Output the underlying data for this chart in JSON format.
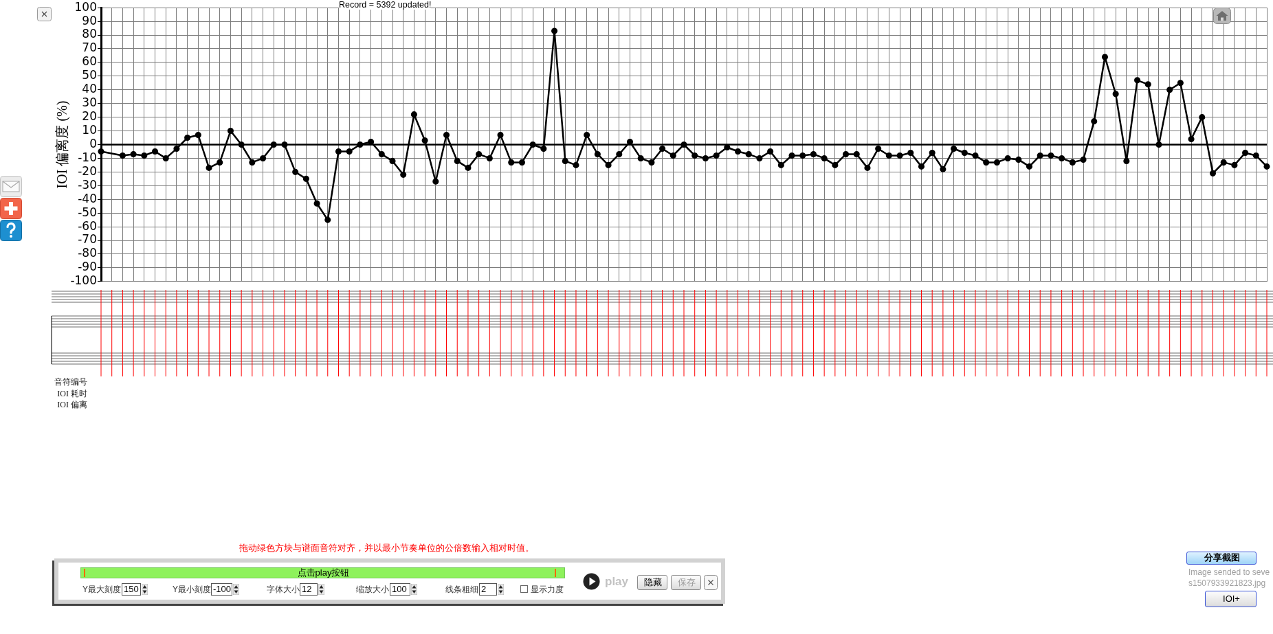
{
  "chart_data": [
    {
      "type": "line",
      "ylabel": "IOI 偏离度 (%)",
      "categories": [
        null,
        null,
        null,
        null,
        null,
        null,
        null,
        null,
        null,
        null,
        null,
        null,
        null,
        null,
        null,
        null,
        null,
        null,
        null,
        null,
        null,
        null,
        null,
        null,
        null,
        null,
        null,
        null,
        null,
        null,
        null,
        null,
        null,
        null,
        null,
        null,
        null,
        null,
        null,
        null,
        null,
        null,
        null,
        null,
        null,
        null,
        null,
        null,
        null,
        null,
        null,
        null,
        null,
        null,
        null,
        null,
        null,
        null,
        null,
        null,
        null,
        null,
        null,
        null,
        null,
        null,
        null,
        null,
        null,
        null,
        null,
        null,
        null,
        null,
        null,
        null,
        null,
        null,
        null,
        null,
        null,
        null,
        null,
        null,
        null,
        null,
        null,
        null,
        null,
        null,
        null,
        null,
        null,
        null,
        null,
        null,
        null,
        null,
        null,
        null,
        null,
        null,
        null,
        null,
        null,
        null,
        null,
        null,
        null
      ],
      "values": [
        -5,
        null,
        -8,
        -7,
        -8,
        -5,
        -10,
        -3,
        5,
        7,
        -17,
        -13,
        10,
        0,
        -13,
        -10,
        0,
        0,
        -20,
        -25,
        -43,
        -55,
        -5,
        -5,
        0,
        2,
        -7,
        -12,
        -22,
        22,
        3,
        -27,
        7,
        -12,
        -17,
        -7,
        -10,
        7,
        -13,
        -13,
        0,
        -3,
        83,
        -12,
        -15,
        7,
        -7,
        -15,
        -7,
        2,
        -10,
        -13,
        -3,
        -8,
        0,
        -8,
        -10,
        -8,
        -2,
        -5,
        -7,
        -10,
        -5,
        -15,
        -8,
        -8,
        -7,
        -10,
        -15,
        -7,
        -7,
        -17,
        -3,
        -8,
        -8,
        -6,
        -16,
        -6,
        -18,
        -3,
        -6,
        -8,
        -13,
        -13,
        -10,
        -11,
        -16,
        -8,
        -8,
        -10,
        -13,
        -11,
        17,
        64,
        37,
        -12,
        47,
        44,
        0,
        40,
        45,
        4,
        20,
        -21,
        -13,
        -15,
        -6,
        -8,
        -16
      ],
      "color": "#000000",
      "ylim": [
        -100,
        100
      ],
      "yticks": [
        -100,
        -90,
        -80,
        -70,
        -60,
        -50,
        -40,
        -30,
        -20,
        -10,
        0,
        10,
        20,
        30,
        40,
        50,
        60,
        70,
        80,
        90,
        100
      ],
      "grid": true,
      "marker": "circle",
      "ref_lines": [
        {
          "axis": "y",
          "value": 0,
          "color": "#000000"
        }
      ],
      "annotations": [
        "Record = 5392 updated!",
        "音符编号",
        "IOI 耗时",
        "IOI 偏离"
      ]
    },
    {
      "type": "other",
      "annotations": [
        "拖动绿色方块与谱面音符对齐，并以最小节奏单位的公倍数输入相对时值。",
        "点击play按钮",
        "Y最大刻度",
        "150",
        "Y最小刻度",
        "-100",
        "字体大小",
        "12",
        "缩放大小",
        "100",
        "线条粗细",
        "2",
        "显示力度",
        "play",
        "隐藏",
        "保存",
        "分享截图",
        "Image sended to seve",
        "IOI+",
        "s1507933921823.jpg"
      ]
    }
  ]
}
